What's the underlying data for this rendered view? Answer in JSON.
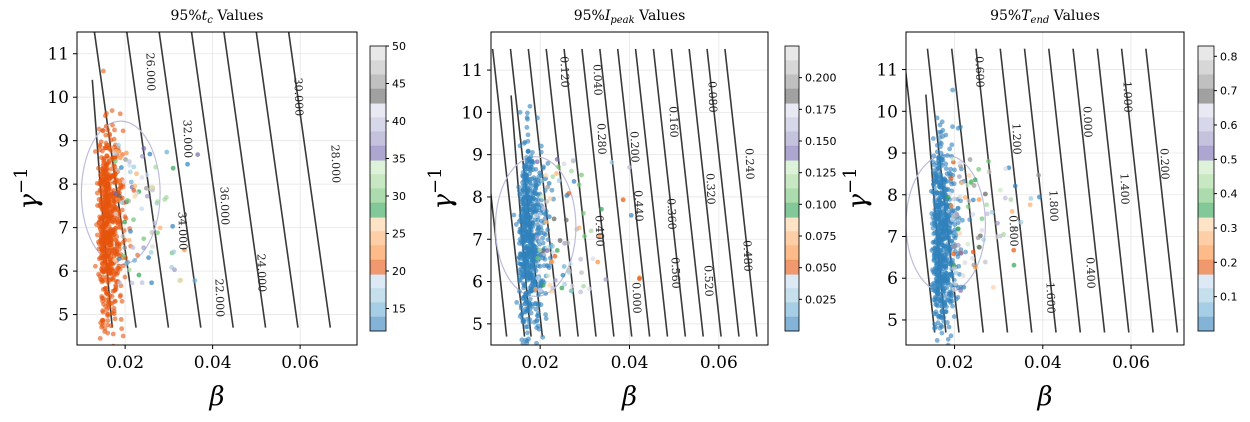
{
  "chart_data": [
    {
      "type": "scatter",
      "title_prefix": "95%",
      "title_var": "t",
      "title_sub": "c",
      "title_suffix": " Values",
      "xlabel": "β",
      "ylabel": "γ",
      "ylabel_sup": "−1",
      "xlim": [
        0.009,
        0.073
      ],
      "ylim": [
        4.3,
        11.5
      ],
      "xticks": [
        "0.02",
        "0.04",
        "0.06"
      ],
      "xtick_values": [
        0.02,
        0.04,
        0.06
      ],
      "yticks": [
        "5",
        "6",
        "7",
        "8",
        "9",
        "10",
        "11"
      ],
      "ytick_values": [
        5,
        6,
        7,
        8,
        9,
        10,
        11
      ],
      "grid": true,
      "colorbar": {
        "range": [
          12,
          50
        ],
        "ticks": [
          "15",
          "20",
          "25",
          "30",
          "35",
          "40",
          "45",
          "50"
        ],
        "tick_values": [
          15,
          20,
          25,
          30,
          35,
          40,
          45,
          50
        ],
        "colormap": "tab20c"
      },
      "contour_labels": [
        "26.000",
        "32.000",
        "36.000",
        "24.000",
        "30.000",
        "28.000",
        "34.000",
        "22.000"
      ],
      "contour_label_points": [
        [
          0.018,
          9.6
        ],
        [
          0.032,
          11.0
        ],
        [
          0.029,
          10.7
        ],
        [
          0.037,
          9.0
        ],
        [
          0.045,
          10.0
        ],
        [
          0.05,
          8.9
        ],
        [
          0.039,
          6.0
        ],
        [
          0.048,
          7.6
        ]
      ],
      "point_cloud": {
        "x_center": 0.0145,
        "y_center": 7.0,
        "dominant_color": "#e6550d",
        "dominant_value": 20
      }
    },
    {
      "type": "scatter",
      "title_prefix": "95%",
      "title_var": "I",
      "title_sub": "peak",
      "title_suffix": " Values",
      "xlabel": "β",
      "ylabel": "γ",
      "ylabel_sup": "−1",
      "xlim": [
        0.009,
        0.071
      ],
      "ylim": [
        4.5,
        11.9
      ],
      "xticks": [
        "0.02",
        "0.04",
        "0.06"
      ],
      "xtick_values": [
        0.02,
        0.04,
        0.06
      ],
      "yticks": [
        "5",
        "6",
        "7",
        "8",
        "9",
        "10",
        "11"
      ],
      "ytick_values": [
        5,
        6,
        7,
        8,
        9,
        10,
        11
      ],
      "grid": true,
      "colorbar": {
        "range": [
          0.0,
          0.225
        ],
        "ticks": [
          "0.025",
          "0.050",
          "0.075",
          "0.100",
          "0.125",
          "0.150",
          "0.175",
          "0.200"
        ],
        "tick_values": [
          0.025,
          0.05,
          0.075,
          0.1,
          0.125,
          0.15,
          0.175,
          0.2
        ],
        "colormap": "tab20c"
      },
      "contour_labels": [
        "0.120",
        "0.280",
        "0.440",
        "0.560",
        "0.080",
        "0.240",
        "0.400",
        "0.000",
        "0.160",
        "0.320",
        "0.480",
        "0.040",
        "0.200",
        "0.360",
        "0.520"
      ],
      "point_cloud": {
        "x_center": 0.016,
        "y_center": 7.0,
        "dominant_color": "#3182bd",
        "dominant_value": 0.01
      }
    },
    {
      "type": "scatter",
      "title_prefix": "95%",
      "title_var": "T",
      "title_sub": "end",
      "title_suffix": " Values",
      "xlabel": "β",
      "ylabel": "γ",
      "ylabel_sup": "−1",
      "xlim": [
        0.009,
        0.072
      ],
      "ylim": [
        4.4,
        11.9
      ],
      "xticks": [
        "0.02",
        "0.04",
        "0.06"
      ],
      "xtick_values": [
        0.02,
        0.04,
        0.06
      ],
      "yticks": [
        "5",
        "6",
        "7",
        "8",
        "9",
        "10",
        "11"
      ],
      "ytick_values": [
        5,
        6,
        7,
        8,
        9,
        10,
        11
      ],
      "grid": true,
      "colorbar": {
        "range": [
          0.0,
          0.83
        ],
        "ticks": [
          "0.1",
          "0.2",
          "0.3",
          "0.4",
          "0.5",
          "0.6",
          "0.7",
          "0.8"
        ],
        "tick_values": [
          0.1,
          0.2,
          0.3,
          0.4,
          0.5,
          0.6,
          0.7,
          0.8
        ],
        "colormap": "tab20c"
      },
      "contour_labels": [
        "0.600",
        "1.200",
        "1.800",
        "0.400",
        "1.000",
        "0.200",
        "0.800",
        "1.600",
        "0.000",
        "1.400"
      ],
      "point_cloud": {
        "x_center": 0.0155,
        "y_center": 7.0,
        "dominant_color": "#3182bd",
        "dominant_value": 0.05
      }
    }
  ]
}
